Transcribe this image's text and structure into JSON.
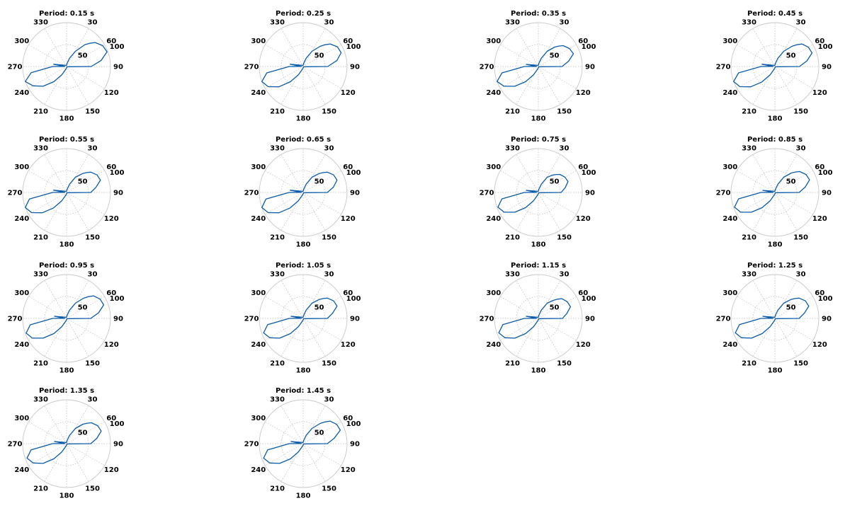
{
  "colors": {
    "series": "#0b5ba8"
  },
  "chart_data": [
    {
      "type": "polar",
      "title": "Period: 0.15 s",
      "r_max": 100,
      "r_ticks": [
        50,
        100
      ],
      "theta_ticks": [
        0,
        30,
        60,
        90,
        120,
        150,
        180,
        210,
        240,
        270,
        300,
        330
      ],
      "theta_labels": [
        "",
        "30",
        "60",
        "90",
        "120",
        "150",
        "180",
        "210",
        "240",
        "270",
        "300",
        "330"
      ],
      "theta": [
        0,
        10,
        20,
        30,
        40,
        45,
        50,
        60,
        70,
        80,
        90,
        95,
        100,
        110,
        120,
        150,
        180,
        200,
        210,
        220,
        230,
        240,
        250,
        260,
        270,
        275,
        280,
        300,
        330
      ],
      "r": [
        3,
        8,
        20,
        40,
        65,
        75,
        85,
        95,
        98,
        80,
        56,
        6,
        4,
        2,
        2,
        2,
        3,
        8,
        22,
        45,
        70,
        88,
        100,
        82,
        32,
        4,
        30,
        6,
        3
      ]
    },
    {
      "type": "polar",
      "title": "Period: 0.25 s",
      "r_max": 100,
      "r_ticks": [
        50,
        100
      ],
      "theta_ticks": [
        0,
        30,
        60,
        90,
        120,
        150,
        180,
        210,
        240,
        270,
        300,
        330
      ],
      "theta_labels": [
        "",
        "30",
        "60",
        "90",
        "120",
        "150",
        "180",
        "210",
        "240",
        "270",
        "300",
        "330"
      ],
      "theta": [
        0,
        10,
        20,
        30,
        40,
        45,
        50,
        60,
        70,
        80,
        90,
        95,
        100,
        110,
        120,
        150,
        180,
        200,
        210,
        220,
        230,
        240,
        250,
        260,
        270,
        275,
        280,
        300,
        330
      ],
      "r": [
        3,
        8,
        20,
        40,
        60,
        70,
        80,
        90,
        92,
        78,
        56,
        6,
        4,
        2,
        2,
        2,
        3,
        8,
        22,
        45,
        72,
        92,
        100,
        84,
        32,
        4,
        30,
        6,
        3
      ]
    },
    {
      "type": "polar",
      "title": "Period: 0.35 s",
      "r_max": 100,
      "r_ticks": [
        50,
        100
      ],
      "theta_ticks": [
        0,
        30,
        60,
        90,
        120,
        150,
        180,
        210,
        240,
        270,
        300,
        330
      ],
      "theta_labels": [
        "",
        "30",
        "60",
        "90",
        "120",
        "150",
        "180",
        "210",
        "240",
        "270",
        "300",
        "330"
      ],
      "theta": [
        0,
        10,
        20,
        30,
        40,
        45,
        50,
        60,
        70,
        80,
        90,
        95,
        100,
        110,
        120,
        150,
        180,
        200,
        210,
        220,
        230,
        240,
        250,
        260,
        270,
        275,
        280,
        300,
        330
      ],
      "r": [
        3,
        8,
        20,
        40,
        58,
        66,
        74,
        82,
        85,
        70,
        54,
        6,
        4,
        2,
        2,
        2,
        3,
        8,
        22,
        45,
        70,
        90,
        100,
        84,
        32,
        4,
        28,
        6,
        3
      ]
    },
    {
      "type": "polar",
      "title": "Period: 0.45 s",
      "r_max": 100,
      "r_ticks": [
        50,
        100
      ],
      "theta_ticks": [
        0,
        30,
        60,
        90,
        120,
        150,
        180,
        210,
        240,
        270,
        300,
        330
      ],
      "theta_labels": [
        "",
        "30",
        "60",
        "90",
        "120",
        "150",
        "180",
        "210",
        "240",
        "270",
        "300",
        "330"
      ],
      "theta": [
        0,
        10,
        20,
        30,
        40,
        45,
        50,
        60,
        70,
        80,
        90,
        95,
        100,
        110,
        120,
        150,
        180,
        200,
        210,
        220,
        230,
        240,
        250,
        260,
        270,
        275,
        280,
        300,
        330
      ],
      "r": [
        3,
        8,
        20,
        40,
        60,
        70,
        80,
        88,
        90,
        74,
        56,
        6,
        4,
        2,
        2,
        2,
        3,
        8,
        22,
        46,
        72,
        92,
        100,
        84,
        32,
        4,
        30,
        6,
        3
      ]
    },
    {
      "type": "polar",
      "title": "Period: 0.55 s",
      "r_max": 100,
      "r_ticks": [
        50,
        100
      ],
      "theta_ticks": [
        0,
        30,
        60,
        90,
        120,
        150,
        180,
        210,
        240,
        270,
        300,
        330
      ],
      "theta_labels": [
        "",
        "30",
        "60",
        "90",
        "120",
        "150",
        "180",
        "210",
        "240",
        "270",
        "300",
        "330"
      ],
      "theta": [
        0,
        10,
        20,
        30,
        40,
        45,
        50,
        60,
        70,
        80,
        90,
        95,
        100,
        110,
        120,
        150,
        180,
        200,
        210,
        220,
        230,
        240,
        250,
        260,
        270,
        275,
        280,
        300,
        330
      ],
      "r": [
        3,
        8,
        20,
        40,
        56,
        64,
        72,
        80,
        82,
        68,
        55,
        6,
        4,
        2,
        2,
        2,
        3,
        8,
        22,
        46,
        72,
        92,
        100,
        86,
        32,
        4,
        30,
        6,
        3
      ]
    },
    {
      "type": "polar",
      "title": "Period: 0.65 s",
      "r_max": 100,
      "r_ticks": [
        50,
        100
      ],
      "theta_ticks": [
        0,
        30,
        60,
        90,
        120,
        150,
        180,
        210,
        240,
        270,
        300,
        330
      ],
      "theta_labels": [
        "",
        "30",
        "60",
        "90",
        "120",
        "150",
        "180",
        "210",
        "240",
        "270",
        "300",
        "330"
      ],
      "theta": [
        0,
        10,
        20,
        30,
        40,
        45,
        50,
        60,
        70,
        80,
        90,
        95,
        100,
        110,
        120,
        150,
        180,
        200,
        210,
        220,
        230,
        240,
        250,
        260,
        270,
        275,
        280,
        300,
        330
      ],
      "r": [
        3,
        8,
        20,
        40,
        56,
        64,
        72,
        80,
        82,
        70,
        55,
        6,
        4,
        2,
        2,
        2,
        3,
        8,
        22,
        46,
        72,
        92,
        100,
        86,
        32,
        4,
        30,
        6,
        3
      ]
    },
    {
      "type": "polar",
      "title": "Period: 0.75 s",
      "r_max": 100,
      "r_ticks": [
        50,
        100
      ],
      "theta_ticks": [
        0,
        30,
        60,
        90,
        120,
        150,
        180,
        210,
        240,
        270,
        300,
        330
      ],
      "theta_labels": [
        "",
        "30",
        "60",
        "90",
        "120",
        "150",
        "180",
        "210",
        "240",
        "270",
        "300",
        "330"
      ],
      "theta": [
        0,
        10,
        20,
        30,
        40,
        45,
        50,
        60,
        70,
        80,
        90,
        95,
        100,
        110,
        120,
        150,
        180,
        200,
        210,
        220,
        230,
        240,
        250,
        260,
        270,
        275,
        280,
        300,
        330
      ],
      "r": [
        3,
        8,
        20,
        40,
        52,
        58,
        64,
        70,
        72,
        62,
        52,
        6,
        4,
        2,
        2,
        2,
        3,
        8,
        22,
        45,
        70,
        90,
        98,
        84,
        32,
        4,
        28,
        6,
        3
      ]
    },
    {
      "type": "polar",
      "title": "Period: 0.85 s",
      "r_max": 100,
      "r_ticks": [
        50,
        100
      ],
      "theta_ticks": [
        0,
        30,
        60,
        90,
        120,
        150,
        180,
        210,
        240,
        270,
        300,
        330
      ],
      "theta_labels": [
        "",
        "30",
        "60",
        "90",
        "120",
        "150",
        "180",
        "210",
        "240",
        "270",
        "300",
        "330"
      ],
      "theta": [
        0,
        10,
        20,
        30,
        40,
        45,
        50,
        60,
        70,
        80,
        90,
        95,
        100,
        110,
        120,
        150,
        180,
        200,
        210,
        220,
        230,
        240,
        250,
        260,
        270,
        275,
        280,
        300,
        330
      ],
      "r": [
        3,
        8,
        20,
        40,
        58,
        66,
        74,
        82,
        84,
        70,
        55,
        6,
        4,
        2,
        2,
        2,
        3,
        8,
        22,
        45,
        70,
        90,
        98,
        84,
        32,
        4,
        28,
        6,
        3
      ]
    },
    {
      "type": "polar",
      "title": "Period: 0.95 s",
      "r_max": 100,
      "r_ticks": [
        50,
        100
      ],
      "theta_ticks": [
        0,
        30,
        60,
        90,
        120,
        150,
        180,
        210,
        240,
        270,
        300,
        330
      ],
      "theta_labels": [
        "",
        "30",
        "60",
        "90",
        "120",
        "150",
        "180",
        "210",
        "240",
        "270",
        "300",
        "330"
      ],
      "theta": [
        0,
        10,
        20,
        30,
        40,
        45,
        50,
        60,
        70,
        80,
        90,
        95,
        100,
        110,
        120,
        150,
        180,
        200,
        210,
        220,
        230,
        240,
        250,
        260,
        270,
        275,
        280,
        300,
        330
      ],
      "r": [
        3,
        8,
        20,
        40,
        60,
        70,
        80,
        88,
        90,
        74,
        55,
        6,
        4,
        2,
        2,
        2,
        3,
        8,
        22,
        45,
        70,
        90,
        98,
        84,
        32,
        4,
        28,
        6,
        3
      ]
    },
    {
      "type": "polar",
      "title": "Period: 1.05 s",
      "r_max": 100,
      "r_ticks": [
        50,
        100
      ],
      "theta_ticks": [
        0,
        30,
        60,
        90,
        120,
        150,
        180,
        210,
        240,
        270,
        300,
        330
      ],
      "theta_labels": [
        "",
        "30",
        "60",
        "90",
        "120",
        "150",
        "180",
        "210",
        "240",
        "270",
        "300",
        "330"
      ],
      "theta": [
        0,
        10,
        20,
        30,
        40,
        45,
        50,
        60,
        70,
        80,
        90,
        95,
        100,
        110,
        120,
        150,
        180,
        200,
        210,
        220,
        230,
        240,
        250,
        260,
        270,
        275,
        280,
        300,
        330
      ],
      "r": [
        3,
        8,
        20,
        40,
        56,
        64,
        72,
        80,
        82,
        68,
        55,
        6,
        4,
        2,
        2,
        2,
        3,
        8,
        22,
        45,
        70,
        88,
        96,
        82,
        32,
        4,
        28,
        6,
        3
      ]
    },
    {
      "type": "polar",
      "title": "Period: 1.15 s",
      "r_max": 100,
      "r_ticks": [
        50,
        100
      ],
      "theta_ticks": [
        0,
        30,
        60,
        90,
        120,
        150,
        180,
        210,
        240,
        270,
        300,
        330
      ],
      "theta_labels": [
        "",
        "30",
        "60",
        "90",
        "120",
        "150",
        "180",
        "210",
        "240",
        "270",
        "300",
        "330"
      ],
      "theta": [
        0,
        10,
        20,
        30,
        40,
        45,
        50,
        60,
        70,
        80,
        90,
        95,
        100,
        110,
        120,
        150,
        180,
        200,
        210,
        220,
        230,
        240,
        250,
        260,
        270,
        275,
        280,
        300,
        330
      ],
      "r": [
        3,
        8,
        20,
        40,
        54,
        62,
        70,
        76,
        78,
        66,
        55,
        6,
        4,
        2,
        2,
        2,
        3,
        8,
        22,
        45,
        70,
        88,
        96,
        82,
        32,
        4,
        28,
        6,
        3
      ]
    },
    {
      "type": "polar",
      "title": "Period: 1.25 s",
      "r_max": 100,
      "r_ticks": [
        50,
        100
      ],
      "theta_ticks": [
        0,
        30,
        60,
        90,
        120,
        150,
        180,
        210,
        240,
        270,
        300,
        330
      ],
      "theta_labels": [
        "",
        "30",
        "60",
        "90",
        "120",
        "150",
        "180",
        "210",
        "240",
        "270",
        "300",
        "330"
      ],
      "theta": [
        0,
        10,
        20,
        30,
        40,
        45,
        50,
        60,
        70,
        80,
        90,
        95,
        100,
        110,
        120,
        150,
        180,
        200,
        210,
        220,
        230,
        240,
        250,
        260,
        270,
        275,
        280,
        300,
        330
      ],
      "r": [
        3,
        8,
        20,
        40,
        56,
        64,
        72,
        80,
        82,
        68,
        55,
        6,
        4,
        2,
        2,
        2,
        3,
        8,
        22,
        45,
        70,
        88,
        96,
        82,
        32,
        4,
        28,
        6,
        3
      ]
    },
    {
      "type": "polar",
      "title": "Period: 1.35 s",
      "r_max": 100,
      "r_ticks": [
        50,
        100
      ],
      "theta_ticks": [
        0,
        30,
        60,
        90,
        120,
        150,
        180,
        210,
        240,
        270,
        300,
        330
      ],
      "theta_labels": [
        "",
        "30",
        "60",
        "90",
        "120",
        "150",
        "180",
        "210",
        "240",
        "270",
        "300",
        "330"
      ],
      "theta": [
        0,
        10,
        20,
        30,
        40,
        45,
        50,
        60,
        70,
        80,
        90,
        95,
        100,
        110,
        120,
        150,
        180,
        200,
        210,
        220,
        230,
        240,
        250,
        260,
        270,
        275,
        280,
        300,
        330
      ],
      "r": [
        3,
        8,
        20,
        40,
        58,
        66,
        74,
        82,
        84,
        70,
        55,
        6,
        4,
        2,
        2,
        2,
        3,
        8,
        22,
        45,
        70,
        88,
        96,
        82,
        32,
        4,
        28,
        6,
        3
      ]
    },
    {
      "type": "polar",
      "title": "Period: 1.45 s",
      "r_max": 100,
      "r_ticks": [
        50,
        100
      ],
      "theta_ticks": [
        0,
        30,
        60,
        90,
        120,
        150,
        180,
        210,
        240,
        270,
        300,
        330
      ],
      "theta_labels": [
        "",
        "30",
        "60",
        "90",
        "120",
        "150",
        "180",
        "210",
        "240",
        "270",
        "300",
        "330"
      ],
      "theta": [
        0,
        10,
        20,
        30,
        40,
        45,
        50,
        60,
        70,
        80,
        90,
        95,
        100,
        110,
        120,
        150,
        180,
        200,
        210,
        220,
        230,
        240,
        250,
        260,
        270,
        275,
        280,
        300,
        330
      ],
      "r": [
        3,
        8,
        20,
        40,
        60,
        70,
        80,
        88,
        90,
        72,
        55,
        6,
        4,
        2,
        2,
        2,
        3,
        8,
        22,
        45,
        70,
        88,
        96,
        82,
        32,
        4,
        28,
        6,
        3
      ]
    }
  ]
}
